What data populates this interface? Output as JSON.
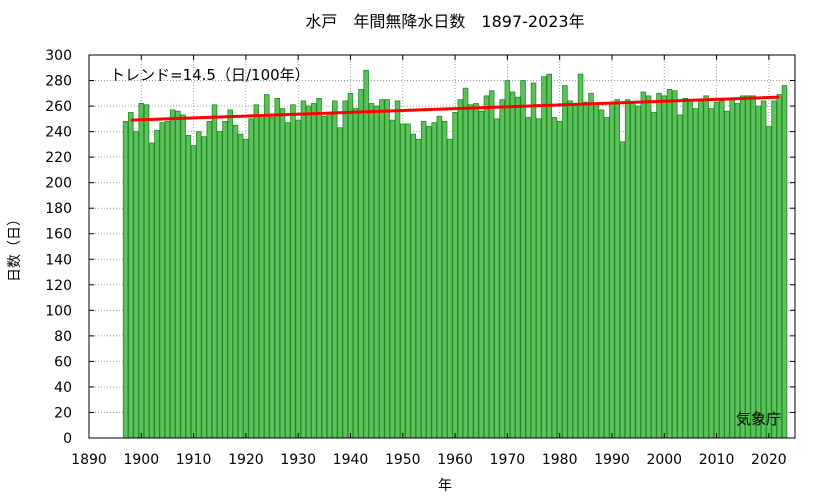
{
  "chart_data": {
    "type": "bar",
    "title": "水戸　年間無降水日数　1897-2023年",
    "xlabel": "年",
    "ylabel": "日数（日）",
    "xlim": [
      1890,
      2025
    ],
    "ylim": [
      0,
      300
    ],
    "x_ticks": [
      1890,
      1900,
      1910,
      1920,
      1930,
      1940,
      1950,
      1960,
      1970,
      1980,
      1990,
      2000,
      2010,
      2020
    ],
    "y_ticks": [
      0,
      20,
      40,
      60,
      80,
      100,
      120,
      140,
      160,
      180,
      200,
      220,
      240,
      260,
      280,
      300
    ],
    "grid": true,
    "bar_color": "#5cc15c",
    "bar_edge_color": "#1f8a1f",
    "trend_color": "#ff0000",
    "trend_label": "トレンド=14.5（日/100年）",
    "trend": {
      "x": [
        1898,
        2022
      ],
      "y": [
        249,
        267
      ]
    },
    "source": "気象庁",
    "x": [
      1897,
      1898,
      1899,
      1900,
      1901,
      1902,
      1903,
      1904,
      1905,
      1906,
      1907,
      1908,
      1909,
      1910,
      1911,
      1912,
      1913,
      1914,
      1915,
      1916,
      1917,
      1918,
      1919,
      1920,
      1921,
      1922,
      1923,
      1924,
      1925,
      1926,
      1927,
      1928,
      1929,
      1930,
      1931,
      1932,
      1933,
      1934,
      1935,
      1936,
      1937,
      1938,
      1939,
      1940,
      1941,
      1942,
      1943,
      1944,
      1945,
      1946,
      1947,
      1948,
      1949,
      1950,
      1951,
      1952,
      1953,
      1954,
      1955,
      1956,
      1957,
      1958,
      1959,
      1960,
      1961,
      1962,
      1963,
      1964,
      1965,
      1966,
      1967,
      1968,
      1969,
      1970,
      1971,
      1972,
      1973,
      1974,
      1975,
      1976,
      1977,
      1978,
      1979,
      1980,
      1981,
      1982,
      1983,
      1984,
      1985,
      1986,
      1987,
      1988,
      1989,
      1990,
      1991,
      1992,
      1993,
      1994,
      1995,
      1996,
      1997,
      1998,
      1999,
      2000,
      2001,
      2002,
      2003,
      2004,
      2005,
      2006,
      2007,
      2008,
      2009,
      2010,
      2011,
      2012,
      2013,
      2014,
      2015,
      2016,
      2017,
      2018,
      2019,
      2020,
      2021,
      2022,
      2023
    ],
    "values": [
      248,
      255,
      240,
      262,
      261,
      231,
      241,
      247,
      248,
      257,
      256,
      253,
      237,
      229,
      240,
      236,
      248,
      261,
      240,
      248,
      257,
      245,
      238,
      234,
      250,
      261,
      253,
      269,
      251,
      266,
      258,
      247,
      261,
      249,
      264,
      260,
      262,
      266,
      252,
      254,
      264,
      243,
      264,
      270,
      258,
      273,
      288,
      262,
      260,
      265,
      265,
      249,
      264,
      246,
      246,
      238,
      234,
      248,
      244,
      247,
      252,
      248,
      234,
      255,
      265,
      274,
      261,
      262,
      256,
      268,
      272,
      250,
      265,
      280,
      271,
      267,
      280,
      251,
      278,
      250,
      283,
      285,
      251,
      248,
      276,
      264,
      261,
      285,
      263,
      270,
      262,
      257,
      251,
      263,
      265,
      232,
      265,
      262,
      260,
      271,
      268,
      255,
      270,
      268,
      273,
      272,
      253,
      266,
      264,
      258,
      265,
      268,
      258,
      263,
      264,
      256,
      265,
      262,
      268,
      268,
      268,
      260,
      264,
      244,
      264,
      269,
      276
    ]
  }
}
